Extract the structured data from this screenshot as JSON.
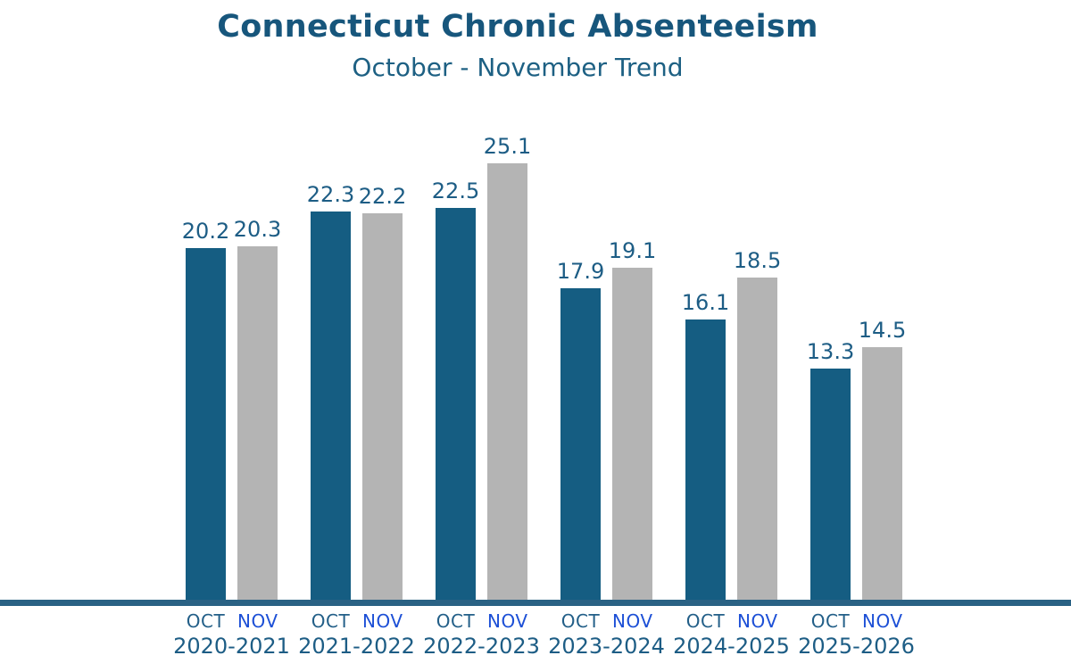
{
  "header": {
    "title": "Connecticut Chronic Absenteeism",
    "subtitle": "October - November Trend"
  },
  "colors": {
    "title_text": "#17567c",
    "subtitle_text": "#1d6083",
    "value_label": "#1d5d85",
    "year_label": "#1d5d85",
    "oct_bar": "#155d82",
    "nov_bar": "#b4b4b4",
    "oct_label": "#235f88",
    "nov_label": "#1c4fd6",
    "axis_line": "#2a6284"
  },
  "chart_data": {
    "type": "bar",
    "title": "Connecticut Chronic Absenteeism",
    "subtitle": "October - November Trend",
    "categories": [
      "2020-2021",
      "2021-2022",
      "2022-2023",
      "2023-2024",
      "2024-2025",
      "2025-2026"
    ],
    "series": [
      {
        "name": "OCT",
        "color": "#155d82",
        "label_color": "#235f88",
        "values": [
          20.2,
          22.3,
          22.5,
          17.9,
          16.1,
          13.3
        ]
      },
      {
        "name": "NOV",
        "color": "#b4b4b4",
        "label_color": "#1c4fd6",
        "values": [
          20.3,
          22.2,
          25.1,
          19.1,
          18.5,
          14.5
        ]
      }
    ],
    "value_labels_shown": true,
    "xlabel": "",
    "ylabel": "",
    "ylim": [
      0,
      25.1
    ],
    "grid": false,
    "legend_position": "none",
    "axis": "single thick horizontal baseline, full width"
  }
}
